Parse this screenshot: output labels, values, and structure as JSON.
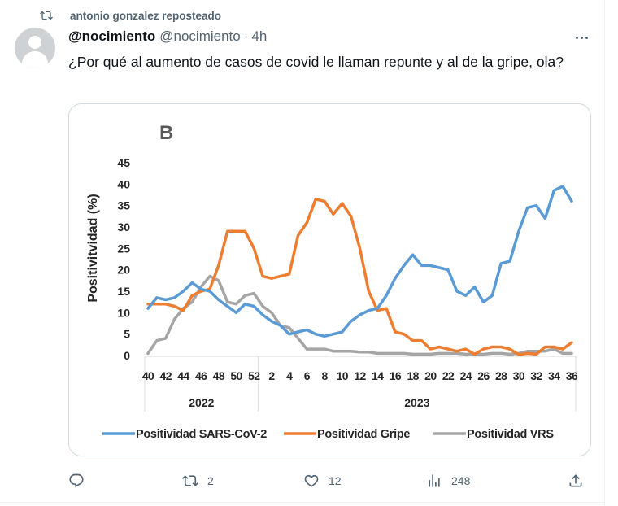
{
  "repost": {
    "icon": "repost-icon",
    "text": "antonio gonzalez reposteado"
  },
  "author": {
    "display_name": "@nocimiento",
    "handle": "@nocimiento",
    "separator": "·",
    "time": "4h",
    "avatar_icon": "default-avatar-icon"
  },
  "tweet": {
    "text": "¿Por qué al aumento de casos de covid le llaman repunte y al de la gripe, ola?"
  },
  "actions": {
    "reply": {
      "icon": "reply-icon",
      "count": ""
    },
    "repost": {
      "icon": "repost-icon",
      "count": "2"
    },
    "like": {
      "icon": "heart-icon",
      "count": "12"
    },
    "views": {
      "icon": "views-bar-chart-icon",
      "count": "248"
    },
    "share": {
      "icon": "share-upload-icon"
    }
  },
  "colors": {
    "sars": "#5b9bd5",
    "gripe": "#ed7d31",
    "vrs": "#a5a5a5",
    "text_secondary": "#536471"
  },
  "chart_data": {
    "type": "line",
    "panel_label": "B",
    "title": "",
    "xlabel": "",
    "ylabel": "Positivitvidad (%)",
    "ylim": [
      0,
      45
    ],
    "yticks": [
      0,
      5,
      10,
      15,
      20,
      25,
      30,
      35,
      40,
      45
    ],
    "grid": false,
    "legend_position": "bottom",
    "x_weeks": [
      40,
      41,
      42,
      43,
      44,
      45,
      46,
      47,
      48,
      49,
      50,
      51,
      52,
      1,
      2,
      3,
      4,
      5,
      6,
      7,
      8,
      9,
      10,
      11,
      12,
      13,
      14,
      15,
      16,
      17,
      18,
      19,
      20,
      21,
      22,
      23,
      24,
      25,
      26,
      27,
      28,
      29,
      30,
      31,
      32,
      33,
      34,
      35,
      36
    ],
    "x_tick_labels": [
      "40",
      "42",
      "44",
      "46",
      "48",
      "50",
      "52",
      "2",
      "4",
      "6",
      "8",
      "10",
      "12",
      "14",
      "16",
      "18",
      "20",
      "22",
      "24",
      "26",
      "28",
      "30",
      "32",
      "34",
      "36"
    ],
    "x_groups": [
      {
        "label": "2022",
        "weeks": "40-52"
      },
      {
        "label": "2023",
        "weeks": "1-36"
      }
    ],
    "series": [
      {
        "name": "Positividad SARS-CoV-2",
        "color": "#5b9bd5",
        "values": [
          11,
          13.5,
          13,
          13.5,
          15,
          17,
          15.5,
          15,
          13,
          11.5,
          10,
          12,
          11.5,
          9.5,
          8,
          7,
          5,
          5.5,
          6,
          5,
          4.5,
          5,
          5.5,
          8,
          9.5,
          10.5,
          11,
          14,
          18,
          21,
          23.5,
          21,
          21,
          20.5,
          20,
          15,
          14,
          16,
          12.5,
          14,
          21.5,
          22,
          29,
          34.5,
          35,
          32,
          38.5,
          39.5,
          36
        ]
      },
      {
        "name": "Positividad Gripe",
        "color": "#ed7d31",
        "values": [
          12,
          12,
          12,
          11.5,
          10.5,
          14,
          15,
          15.5,
          21,
          29,
          29,
          29,
          25,
          18.5,
          18,
          18.5,
          19,
          28,
          31,
          36.5,
          36,
          33,
          35.5,
          32.5,
          25,
          15,
          10.5,
          11,
          5.5,
          5,
          3.5,
          3.5,
          1.5,
          2,
          1.5,
          1,
          1.5,
          0.3,
          1.5,
          2,
          2,
          1.5,
          0.2,
          0.5,
          0.3,
          2,
          2,
          1.5,
          3
        ]
      },
      {
        "name": "Positividad VRS",
        "color": "#a5a5a5",
        "values": [
          0.5,
          3.5,
          4,
          8.5,
          11,
          12.5,
          16,
          18.5,
          17.5,
          12.5,
          12,
          14,
          14.5,
          11.5,
          10,
          7,
          6.5,
          4,
          1.5,
          1.5,
          1.5,
          1,
          1,
          1,
          0.8,
          0.8,
          0.5,
          0.5,
          0.5,
          0.5,
          0.3,
          0.3,
          0.3,
          0.5,
          0.5,
          0.5,
          0.3,
          0.3,
          0.3,
          0.5,
          0.5,
          0.3,
          0.5,
          1,
          1,
          1,
          1.5,
          0.5,
          0.5
        ]
      }
    ]
  }
}
